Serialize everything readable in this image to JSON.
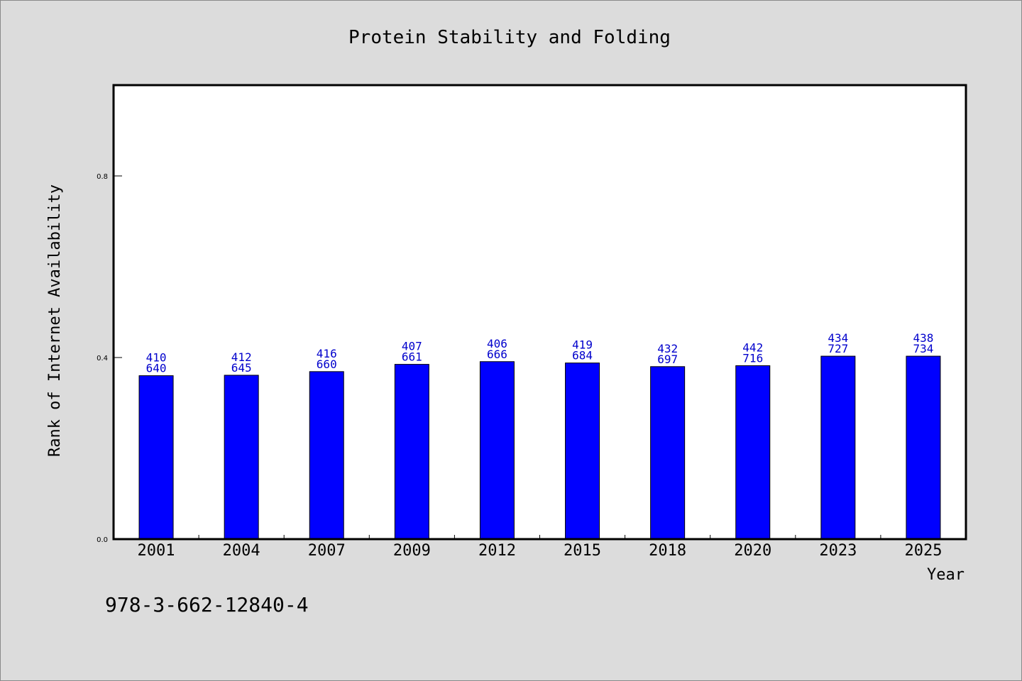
{
  "chart_data": {
    "type": "bar",
    "title": "Protein Stability and Folding",
    "xlabel": "Year",
    "ylabel": "Rank of Internet Availability",
    "categories": [
      "2001",
      "2004",
      "2007",
      "2009",
      "2012",
      "2015",
      "2018",
      "2020",
      "2023",
      "2025"
    ],
    "values": [
      0.36,
      0.361,
      0.369,
      0.385,
      0.391,
      0.388,
      0.38,
      0.382,
      0.403,
      0.403
    ],
    "labels_top": [
      "410",
      "412",
      "416",
      "407",
      "406",
      "419",
      "432",
      "442",
      "434",
      "438"
    ],
    "labels_bottom": [
      "640",
      "645",
      "660",
      "661",
      "666",
      "684",
      "697",
      "716",
      "727",
      "734"
    ],
    "ylim": [
      0,
      1.0
    ],
    "yticks": [
      "0.0",
      "0.4",
      "0.8"
    ],
    "grid": false,
    "legend": "none",
    "bar_color": "#0000ff",
    "label_color": "#0000cc"
  },
  "footer": {
    "isbn": "978-3-662-12840-4"
  }
}
